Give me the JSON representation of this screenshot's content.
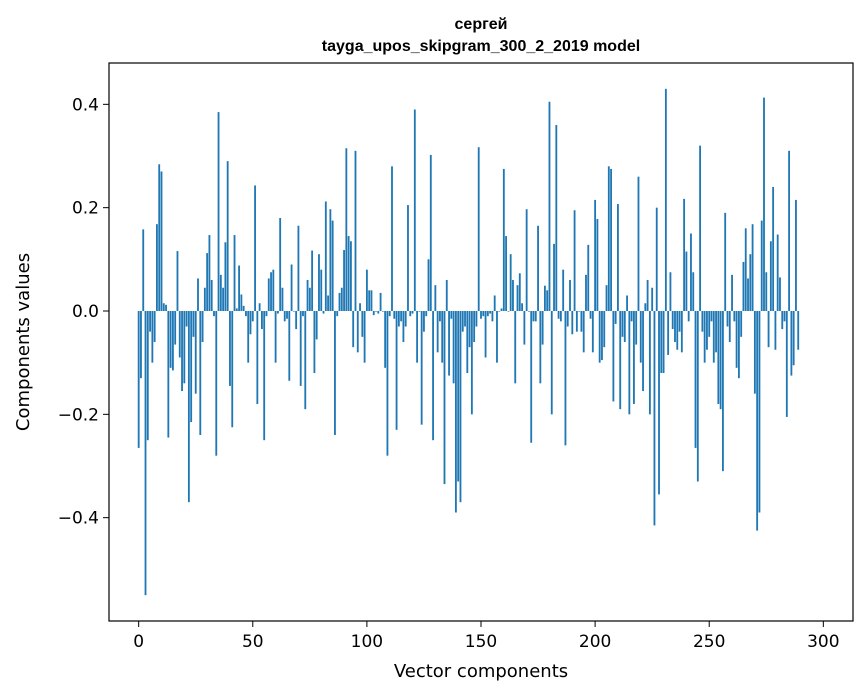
{
  "chart_data": {
    "type": "bar",
    "title_line1": "сергей",
    "title_line2": "tayga_upos_skipgram_300_2_2019 model",
    "xlabel": "Vector components",
    "ylabel": "Components values",
    "xlim": [
      -13,
      313
    ],
    "ylim": [
      -0.6,
      0.48
    ],
    "xticks": [
      0,
      50,
      100,
      150,
      200,
      250,
      300
    ],
    "xtick_labels": [
      "0",
      "50",
      "100",
      "150",
      "200",
      "250",
      "300"
    ],
    "yticks": [
      -0.4,
      -0.2,
      0.0,
      0.2,
      0.4
    ],
    "ytick_labels": [
      "−0.4",
      "−0.2",
      "0.0",
      "0.2",
      "0.4"
    ],
    "bar_color": "#1f77b4",
    "values": [
      -0.265,
      -0.13,
      0.158,
      -0.55,
      -0.25,
      -0.04,
      -0.1,
      -0.06,
      0.168,
      0.284,
      0.27,
      0.015,
      0.012,
      -0.245,
      -0.11,
      -0.115,
      -0.065,
      0.116,
      -0.09,
      -0.155,
      -0.14,
      -0.03,
      -0.37,
      -0.215,
      -0.05,
      -0.16,
      0.063,
      -0.24,
      -0.06,
      0.045,
      0.112,
      0.147,
      0.06,
      -0.01,
      -0.28,
      0.385,
      0.07,
      0.045,
      0.133,
      0.29,
      -0.145,
      -0.225,
      0.147,
      0.005,
      0.088,
      0.032,
      0.01,
      -0.01,
      -0.1,
      -0.045,
      -0.02,
      0.243,
      -0.18,
      0.015,
      -0.035,
      -0.25,
      -0.01,
      0.063,
      0.075,
      0.08,
      -0.1,
      -0.005,
      0.18,
      0.045,
      -0.02,
      -0.015,
      -0.135,
      0.09,
      0.0,
      -0.035,
      0.165,
      -0.145,
      -0.01,
      -0.19,
      0.06,
      0.045,
      0.117,
      -0.12,
      -0.055,
      0.11,
      0.08,
      -0.005,
      0.212,
      0.03,
      0.197,
      0.175,
      -0.24,
      -0.01,
      0.035,
      0.045,
      0.118,
      0.315,
      0.145,
      0.135,
      -0.07,
      0.31,
      -0.08,
      0.015,
      -0.05,
      -0.1,
      0.08,
      0.04,
      0.04,
      -0.008,
      0.0,
      -0.005,
      0.035,
      0.0,
      -0.11,
      -0.28,
      -0.01,
      0.28,
      -0.015,
      -0.23,
      -0.03,
      -0.02,
      -0.06,
      -0.03,
      0.205,
      -0.01,
      -0.005,
      0.39,
      -0.1,
      0.0,
      -0.22,
      -0.04,
      -0.01,
      0.1,
      0.302,
      -0.25,
      0.05,
      -0.08,
      -0.02,
      -0.1,
      -0.335,
      0.06,
      -0.125,
      -0.015,
      -0.14,
      -0.39,
      -0.33,
      -0.37,
      -0.04,
      -0.03,
      -0.12,
      -0.07,
      -0.2,
      -0.06,
      -0.03,
      0.317,
      -0.015,
      -0.01,
      -0.09,
      -0.01,
      -0.005,
      -0.02,
      0.03,
      -0.1,
      0.0,
      0.005,
      0.275,
      0.145,
      0.0,
      0.11,
      0.06,
      -0.14,
      0.05,
      0.073,
      0.015,
      -0.065,
      0.197,
      0.0,
      -0.255,
      -0.02,
      -0.02,
      0.165,
      -0.14,
      -0.065,
      0.049,
      0.04,
      0.405,
      -0.2,
      0.13,
      0.36,
      -0.015,
      -0.02,
      0.08,
      -0.26,
      -0.03,
      0.06,
      -0.045,
      0.195,
      -0.04,
      0.0,
      -0.04,
      -0.08,
      0.07,
      0.128,
      -0.015,
      -0.08,
      0.215,
      0.178,
      -0.1,
      -0.095,
      -0.07,
      0.05,
      0.28,
      0.275,
      -0.175,
      -0.025,
      0.207,
      -0.19,
      -0.05,
      -0.06,
      0.03,
      -0.2,
      -0.02,
      -0.18,
      -0.065,
      0.26,
      -0.1,
      -0.155,
      0.015,
      0.06,
      -0.2,
      0.045,
      -0.415,
      0.2,
      -0.355,
      -0.12,
      -0.12,
      0.43,
      -0.085,
      0.075,
      -0.035,
      -0.06,
      -0.075,
      -0.04,
      -0.08,
      0.217,
      0.115,
      -0.02,
      0.15,
      0.075,
      -0.265,
      -0.33,
      0.32,
      -0.04,
      -0.1,
      -0.075,
      -0.05,
      -0.02,
      -0.1,
      -0.08,
      -0.18,
      -0.19,
      -0.31,
      0.19,
      -0.03,
      -0.06,
      0.07,
      -0.02,
      -0.11,
      -0.13,
      -0.05,
      0.095,
      0.16,
      0.063,
      0.11,
      0.168,
      -0.16,
      -0.425,
      -0.39,
      0.175,
      0.413,
      0.075,
      -0.07,
      0.135,
      0.24,
      -0.075,
      0.148,
      0.065,
      -0.035,
      -0.02,
      -0.205,
      0.31,
      -0.125,
      -0.105,
      0.215,
      -0.075
    ]
  }
}
